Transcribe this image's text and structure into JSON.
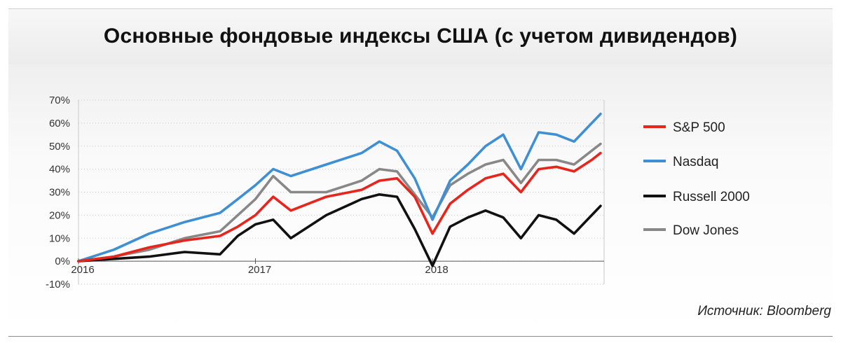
{
  "title": "Основные фондовые индексы США (с учетом дивидендов)",
  "source": "Источник: Bloomberg",
  "chart_data": {
    "type": "line",
    "title": "Основные фондовые индексы США (с учетом дивидендов)",
    "x_tick_labels": [
      "2016",
      "2017",
      "2018"
    ],
    "x": [
      2016.0,
      2016.2,
      2016.4,
      2016.6,
      2016.8,
      2016.9,
      2017.0,
      2017.1,
      2017.2,
      2017.4,
      2017.6,
      2017.7,
      2017.8,
      2017.9,
      2018.0,
      2018.1,
      2018.2,
      2018.3,
      2018.4,
      2018.5,
      2018.6,
      2018.7,
      2018.8,
      2018.9,
      2018.95
    ],
    "y_tick_labels": [
      "-10%",
      "0%",
      "10%",
      "20%",
      "30%",
      "40%",
      "50%",
      "60%",
      "70%"
    ],
    "ylim": [
      -10,
      70
    ],
    "series": [
      {
        "name": "S&P 500",
        "color": "#e8251c",
        "values": [
          0,
          2,
          6,
          9,
          11,
          15,
          20,
          28,
          22,
          28,
          31,
          35,
          36,
          28,
          12,
          25,
          31,
          36,
          38,
          30,
          40,
          41,
          39,
          44,
          47
        ]
      },
      {
        "name": "Nasdaq",
        "color": "#3f8fd4",
        "values": [
          0,
          5,
          12,
          17,
          21,
          27,
          33,
          40,
          37,
          42,
          47,
          52,
          48,
          36,
          18,
          35,
          42,
          50,
          55,
          40,
          56,
          55,
          52,
          60,
          64
        ]
      },
      {
        "name": "Russell 2000",
        "color": "#111111",
        "values": [
          0,
          1,
          2,
          4,
          3,
          11,
          16,
          18,
          10,
          20,
          27,
          29,
          28,
          14,
          -2,
          15,
          19,
          22,
          19,
          10,
          20,
          18,
          12,
          20,
          24
        ]
      },
      {
        "name": "Dow Jones",
        "color": "#888888",
        "values": [
          0,
          2,
          5,
          10,
          13,
          20,
          27,
          37,
          30,
          30,
          35,
          40,
          39,
          29,
          19,
          33,
          38,
          42,
          44,
          34,
          44,
          44,
          42,
          48,
          51
        ]
      }
    ],
    "grid": "horizontal-dotted",
    "legend": "right"
  }
}
